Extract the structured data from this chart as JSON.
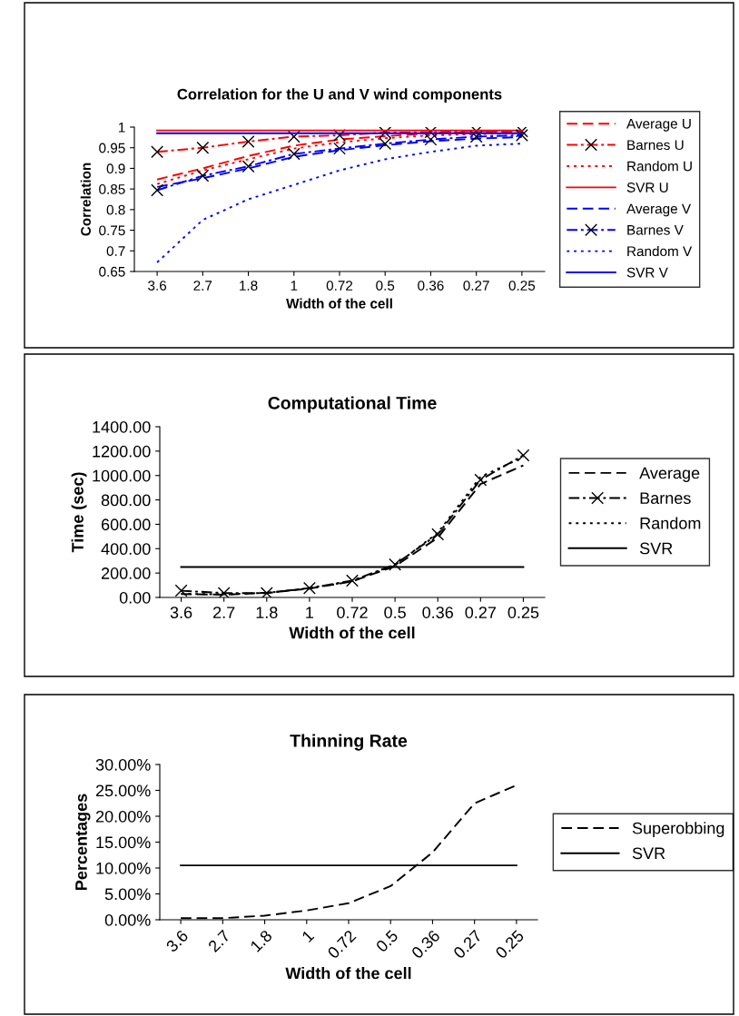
{
  "chart_data": [
    {
      "type": "line",
      "title": "Correlation for the U and V wind components",
      "xlabel": "Width of the cell",
      "ylabel": "Correlation",
      "categories": [
        "3.6",
        "2.7",
        "1.8",
        "1",
        "0.72",
        "0.5",
        "0.36",
        "0.27",
        "0.25"
      ],
      "series": [
        {
          "name": "Average U",
          "color": "#ff0000",
          "line_style": "dashed",
          "marker": "none",
          "values": [
            0.873,
            0.9,
            0.93,
            0.955,
            0.97,
            0.978,
            0.985,
            0.988,
            0.99
          ]
        },
        {
          "name": "Barnes U",
          "color": "#ff0000",
          "line_style": "dashdot",
          "marker": "cross",
          "values": [
            0.94,
            0.95,
            0.965,
            0.977,
            0.98,
            0.987,
            0.988,
            0.99,
            0.99
          ]
        },
        {
          "name": "Random U",
          "color": "#ff0000",
          "line_style": "dotted",
          "marker": "none",
          "values": [
            0.862,
            0.895,
            0.922,
            0.948,
            0.963,
            0.973,
            0.98,
            0.983,
            0.985
          ]
        },
        {
          "name": "SVR U",
          "color": "#ff0000",
          "line_style": "solid",
          "marker": "none",
          "values": [
            0.992,
            0.992,
            0.992,
            0.992,
            0.992,
            0.992,
            0.992,
            0.992,
            0.992
          ]
        },
        {
          "name": "Average V",
          "color": "#0000ff",
          "line_style": "dashed",
          "marker": "none",
          "values": [
            0.855,
            0.876,
            0.9,
            0.928,
            0.944,
            0.956,
            0.966,
            0.972,
            0.976
          ]
        },
        {
          "name": "Barnes V",
          "color": "#0000ff",
          "line_style": "dashdot",
          "marker": "cross",
          "values": [
            0.847,
            0.882,
            0.905,
            0.935,
            0.948,
            0.96,
            0.97,
            0.977,
            0.98
          ]
        },
        {
          "name": "Random V",
          "color": "#0000ff",
          "line_style": "dotted",
          "marker": "none",
          "values": [
            0.672,
            0.775,
            0.825,
            0.86,
            0.895,
            0.922,
            0.94,
            0.955,
            0.96
          ]
        },
        {
          "name": "SVR V",
          "color": "#0000ff",
          "line_style": "solid",
          "marker": "none",
          "values": [
            0.985,
            0.985,
            0.985,
            0.985,
            0.985,
            0.985,
            0.985,
            0.985,
            0.985
          ]
        }
      ],
      "ylim": [
        0.65,
        1.0
      ],
      "yticks": [
        0.65,
        0.7,
        0.75,
        0.8,
        0.85,
        0.9,
        0.95,
        1
      ],
      "legend": "right",
      "grid": false
    },
    {
      "type": "line",
      "title": "Computational Time",
      "xlabel": "Width of the cell",
      "ylabel": "Time (sec)",
      "categories": [
        "3.6",
        "2.7",
        "1.8",
        "1",
        "0.72",
        "0.5",
        "0.36",
        "0.27",
        "0.25"
      ],
      "series": [
        {
          "name": "Average",
          "color": "#000000",
          "line_style": "dashed",
          "marker": "none",
          "values": [
            28,
            22,
            39,
            72,
            132,
            256,
            490,
            930,
            1083
          ]
        },
        {
          "name": "Barnes",
          "color": "#000000",
          "line_style": "dashdot",
          "marker": "cross",
          "values": [
            55,
            36,
            35,
            77,
            138,
            270,
            518,
            965,
            1166
          ]
        },
        {
          "name": "Random",
          "color": "#000000",
          "line_style": "dotted",
          "marker": "none",
          "values": [
            30,
            25,
            38,
            75,
            135,
            265,
            530,
            990,
            1150
          ]
        },
        {
          "name": "SVR",
          "color": "#000000",
          "line_style": "solid",
          "marker": "none",
          "values": [
            250,
            250,
            250,
            250,
            250,
            250,
            250,
            250,
            250
          ]
        }
      ],
      "ylim": [
        0,
        1400
      ],
      "yticks": [
        {
          "value": 0,
          "label": "0.00"
        },
        {
          "value": 200,
          "label": "200.00"
        },
        {
          "value": 400,
          "label": "400.00"
        },
        {
          "value": 600,
          "label": "600.00"
        },
        {
          "value": 800,
          "label": "800.00"
        },
        {
          "value": 1000,
          "label": "1000.00"
        },
        {
          "value": 1200,
          "label": "1200.00"
        },
        {
          "value": 1400,
          "label": "1400.00"
        }
      ],
      "legend": "right",
      "grid": false
    },
    {
      "type": "line",
      "title": "Thinning Rate",
      "xlabel": "Width of the cell",
      "ylabel": "Percentages",
      "categories": [
        "3.6",
        "2.7",
        "1.8",
        "1",
        "0.72",
        "0.5",
        "0.36",
        "0.27",
        "0.25"
      ],
      "series": [
        {
          "name": "Superobbing",
          "color": "#000000",
          "line_style": "dashed",
          "marker": "none",
          "values": [
            0.3,
            0.3,
            0.8,
            1.8,
            3.2,
            6.5,
            13,
            22.5,
            26
          ]
        },
        {
          "name": "SVR",
          "color": "#000000",
          "line_style": "solid",
          "marker": "none",
          "values": [
            10.5,
            10.5,
            10.5,
            10.5,
            10.5,
            10.5,
            10.5,
            10.5,
            10.5
          ]
        }
      ],
      "ylim": [
        0,
        30
      ],
      "yticks": [
        {
          "value": 0,
          "label": "0.00%"
        },
        {
          "value": 5,
          "label": "5.00%"
        },
        {
          "value": 10,
          "label": "10.00%"
        },
        {
          "value": 15,
          "label": "15.00%"
        },
        {
          "value": 20,
          "label": "20.00%"
        },
        {
          "value": 25,
          "label": "25.00%"
        },
        {
          "value": 30,
          "label": "30.00%"
        }
      ],
      "legend": "right",
      "grid": false
    }
  ]
}
